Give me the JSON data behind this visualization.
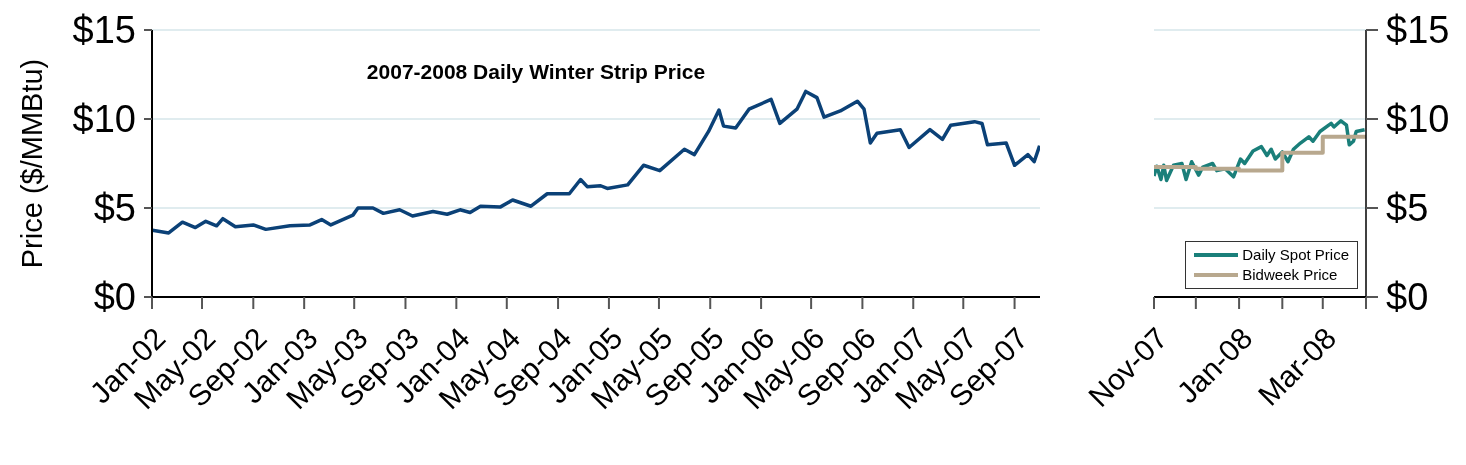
{
  "chart_data": [
    {
      "type": "line",
      "title": "2007-2008 Daily Winter Strip Price",
      "ylabel": "Price ($/MMBtu)",
      "grid": "y",
      "legend": false,
      "marker": "none",
      "line_style": "solid",
      "xlim": [
        "2002-01-01",
        "2007-11-01"
      ],
      "xticks": [
        {
          "value": "2002-01-01",
          "label": "Jan-02"
        },
        {
          "value": "2002-05-01",
          "label": "May-02"
        },
        {
          "value": "2002-09-01",
          "label": "Sep-02"
        },
        {
          "value": "2003-01-01",
          "label": "Jan-03"
        },
        {
          "value": "2003-05-01",
          "label": "May-03"
        },
        {
          "value": "2003-09-01",
          "label": "Sep-03"
        },
        {
          "value": "2004-01-01",
          "label": "Jan-04"
        },
        {
          "value": "2004-05-01",
          "label": "May-04"
        },
        {
          "value": "2004-09-01",
          "label": "Sep-04"
        },
        {
          "value": "2005-01-01",
          "label": "Jan-05"
        },
        {
          "value": "2005-05-01",
          "label": "May-05"
        },
        {
          "value": "2005-09-01",
          "label": "Sep-05"
        },
        {
          "value": "2006-01-01",
          "label": "Jan-06"
        },
        {
          "value": "2006-05-01",
          "label": "May-06"
        },
        {
          "value": "2006-09-01",
          "label": "Sep-06"
        },
        {
          "value": "2007-01-01",
          "label": "Jan-07"
        },
        {
          "value": "2007-05-01",
          "label": "May-07"
        },
        {
          "value": "2007-09-01",
          "label": "Sep-07"
        }
      ],
      "ylim": [
        0,
        15
      ],
      "yticks": [
        {
          "value": 0,
          "label": "$0"
        },
        {
          "value": 5,
          "label": "$5"
        },
        {
          "value": 10,
          "label": "$10"
        },
        {
          "value": 15,
          "label": "$15"
        }
      ],
      "series": [
        {
          "color": "#0b4177",
          "x": [
            "2002-01-02",
            "2002-02-10",
            "2002-03-15",
            "2002-04-15",
            "2002-05-10",
            "2002-06-05",
            "2002-06-20",
            "2002-07-20",
            "2002-09-01",
            "2002-10-01",
            "2002-11-28",
            "2003-01-15",
            "2003-02-12",
            "2003-03-06",
            "2003-04-28",
            "2003-05-10",
            "2003-06-15",
            "2003-07-10",
            "2003-08-18",
            "2003-09-18",
            "2003-11-06",
            "2003-12-10",
            "2004-01-10",
            "2004-02-03",
            "2004-02-28",
            "2004-04-15",
            "2004-05-15",
            "2004-06-28",
            "2004-08-06",
            "2004-09-28",
            "2004-10-25",
            "2004-11-10",
            "2004-12-12",
            "2004-12-28",
            "2005-02-15",
            "2005-03-25",
            "2005-05-03",
            "2005-07-01",
            "2005-07-25",
            "2005-08-28",
            "2005-09-22",
            "2005-10-03",
            "2005-11-01",
            "2005-12-03",
            "2006-01-25",
            "2006-02-15",
            "2006-03-28",
            "2006-04-18",
            "2006-05-15",
            "2006-06-01",
            "2006-07-10",
            "2006-08-20",
            "2006-09-05",
            "2006-09-20",
            "2006-10-06",
            "2006-12-01",
            "2006-12-22",
            "2007-02-10",
            "2007-03-12",
            "2007-04-01",
            "2007-05-28",
            "2007-06-15",
            "2007-06-28",
            "2007-08-12",
            "2007-09-01",
            "2007-10-03",
            "2007-10-18",
            "2007-10-31"
          ],
          "values": [
            3.75,
            3.6,
            4.2,
            3.9,
            4.25,
            4.0,
            4.4,
            3.95,
            4.05,
            3.8,
            4.0,
            4.05,
            4.35,
            4.05,
            4.6,
            5.0,
            5.0,
            4.7,
            4.9,
            4.55,
            4.8,
            4.65,
            4.9,
            4.75,
            5.1,
            5.05,
            5.45,
            5.1,
            5.8,
            5.8,
            6.6,
            6.2,
            6.25,
            6.1,
            6.3,
            7.4,
            7.1,
            8.3,
            8.0,
            9.3,
            10.5,
            9.6,
            9.5,
            10.55,
            11.1,
            9.75,
            10.55,
            11.55,
            11.2,
            10.1,
            10.45,
            11.0,
            10.55,
            8.65,
            9.2,
            9.4,
            8.4,
            9.4,
            8.85,
            9.65,
            9.85,
            9.75,
            8.55,
            8.65,
            7.4,
            8.0,
            7.6,
            8.5
          ]
        }
      ]
    },
    {
      "type": "line",
      "grid": "y",
      "legend": "bottom right",
      "marker": "none",
      "line_style": "solid",
      "xlim": [
        "2007-11-01",
        "2008-04-01"
      ],
      "xticks": [
        {
          "value": "2007-11-01",
          "label": "Nov-07"
        },
        {
          "value": "2007-12-01",
          "label": null
        },
        {
          "value": "2008-01-01",
          "label": "Jan-08"
        },
        {
          "value": "2008-02-01",
          "label": null
        },
        {
          "value": "2008-03-01",
          "label": "Mar-08"
        },
        {
          "value": "2008-04-01",
          "label": null
        }
      ],
      "y2lim": [
        0,
        15
      ],
      "y2ticks": [
        {
          "value": 0,
          "label": "$0"
        },
        {
          "value": 5,
          "label": "$5"
        },
        {
          "value": 10,
          "label": "$10"
        },
        {
          "value": 15,
          "label": "$15"
        }
      ],
      "series": [
        {
          "name": "Daily Spot Price",
          "color": "#1a7f7a",
          "axis": "y2",
          "x": [
            "2007-11-01",
            "2007-11-03",
            "2007-11-06",
            "2007-11-08",
            "2007-11-10",
            "2007-11-15",
            "2007-11-21",
            "2007-11-24",
            "2007-11-28",
            "2007-12-03",
            "2007-12-06",
            "2007-12-13",
            "2007-12-16",
            "2007-12-22",
            "2007-12-28",
            "2008-01-02",
            "2008-01-05",
            "2008-01-11",
            "2008-01-17",
            "2008-01-21",
            "2008-01-24",
            "2008-01-27",
            "2008-02-01",
            "2008-02-05",
            "2008-02-09",
            "2008-02-14",
            "2008-02-20",
            "2008-02-23",
            "2008-02-28",
            "2008-03-07",
            "2008-03-09",
            "2008-03-14",
            "2008-03-18",
            "2008-03-20",
            "2008-03-23",
            "2008-03-25",
            "2008-03-31"
          ],
          "values": [
            6.8,
            7.35,
            6.6,
            7.4,
            6.55,
            7.4,
            7.5,
            6.6,
            7.6,
            6.85,
            7.3,
            7.5,
            7.1,
            7.2,
            6.75,
            7.75,
            7.5,
            8.2,
            8.45,
            7.95,
            8.3,
            7.75,
            8.15,
            7.6,
            8.3,
            8.65,
            9.0,
            8.75,
            9.3,
            9.75,
            9.55,
            9.9,
            9.65,
            8.55,
            8.75,
            9.3,
            9.4
          ]
        },
        {
          "name": "Bidweek Price",
          "type": "step",
          "color": "#b8a88e",
          "axis": "y2",
          "x": [
            "2007-11-01",
            "2007-12-01",
            "2008-01-01",
            "2008-02-01",
            "2008-03-01",
            "2008-04-01"
          ],
          "values": [
            7.3,
            7.2,
            7.1,
            8.1,
            9.0,
            9.0
          ]
        }
      ]
    }
  ]
}
